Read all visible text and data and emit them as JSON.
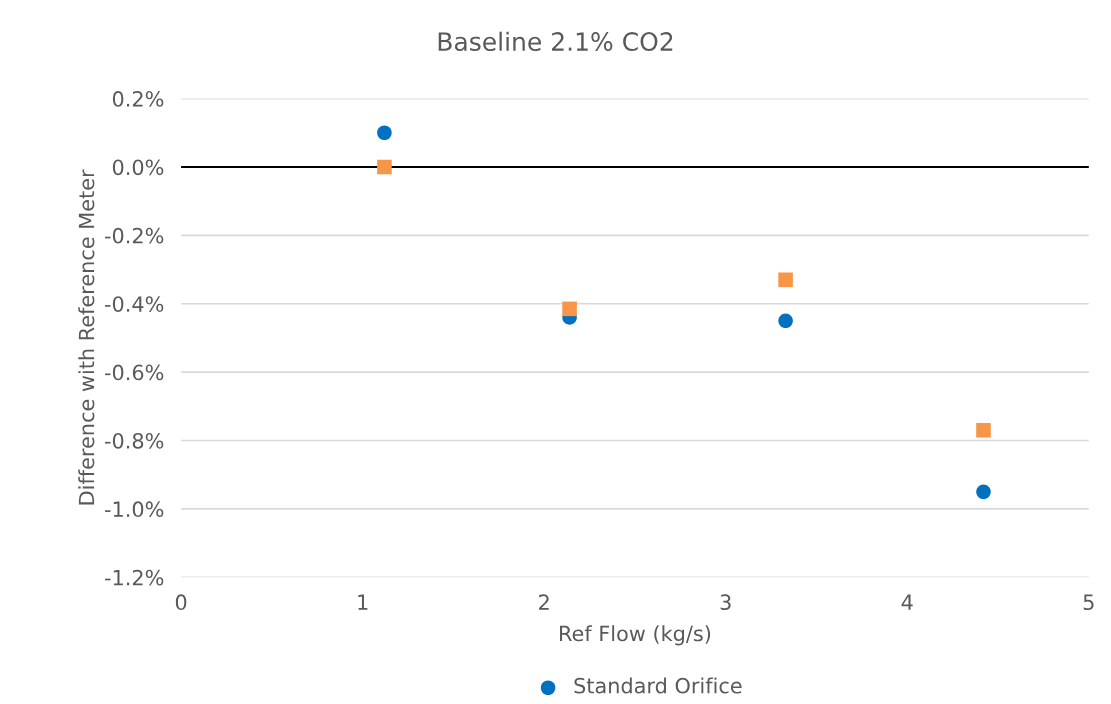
{
  "chart_data": {
    "type": "scatter",
    "title": "Baseline 2.1% CO2",
    "xlabel": "Ref Flow (kg/s)",
    "ylabel": "Difference with Reference Meter",
    "series": [
      {
        "name": "Standard Orifice",
        "color": "#0070c0",
        "marker": "circle",
        "x": [
          1.12,
          2.14,
          3.33,
          4.42
        ],
        "values": [
          0.1,
          -0.44,
          -0.45,
          -0.95
        ]
      },
      {
        "color": "#f79646",
        "marker": "square",
        "x": [
          1.12,
          2.14,
          3.33,
          4.42
        ],
        "values": [
          0.0,
          -0.415,
          -0.33,
          -0.77
        ]
      }
    ],
    "xlim": [
      0,
      5
    ],
    "xticks": [
      0,
      1,
      2,
      3,
      4,
      5
    ],
    "ylim": [
      -1.2,
      0.2
    ],
    "yticks": [
      {
        "value": 0.2,
        "label": "0.2%"
      },
      {
        "value": 0,
        "label": "0.0%"
      },
      {
        "value": -0.2,
        "label": "-0.2%"
      },
      {
        "value": -0.4,
        "label": "-0.4%"
      },
      {
        "value": -0.6,
        "label": "-0.6%"
      },
      {
        "value": -0.8,
        "label": "-0.8%"
      },
      {
        "value": -1.0,
        "label": "-1.0%"
      },
      {
        "value": -1.2,
        "label": "-1.2%"
      }
    ],
    "ref_lines": [
      {
        "axis": "y",
        "value": 0,
        "color": "#000000"
      }
    ],
    "grid": "y",
    "legend": "bottom"
  }
}
